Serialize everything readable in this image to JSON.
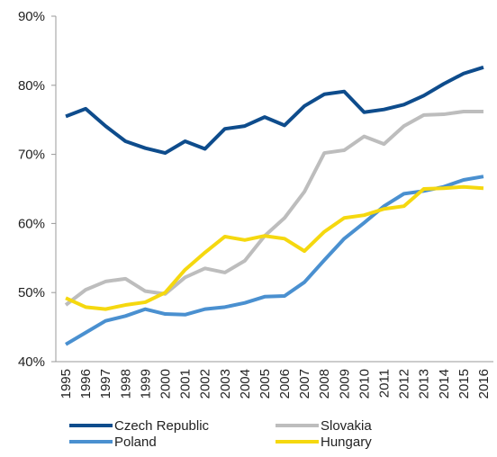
{
  "chart_data": {
    "type": "line",
    "categories": [
      "1995",
      "1996",
      "1997",
      "1998",
      "1999",
      "2000",
      "2001",
      "2002",
      "2003",
      "2004",
      "2005",
      "2006",
      "2007",
      "2008",
      "2009",
      "2010",
      "2011",
      "2012",
      "2013",
      "2014",
      "2015",
      "2016"
    ],
    "series": [
      {
        "name": "Czech Republic",
        "color": "#0e4c8c",
        "values": [
          75.5,
          76.6,
          74.1,
          71.9,
          70.9,
          70.2,
          71.9,
          70.8,
          73.7,
          74.1,
          75.4,
          74.2,
          77.0,
          78.7,
          79.1,
          76.1,
          76.5,
          77.2,
          78.5,
          80.2,
          81.7,
          82.6
        ]
      },
      {
        "name": "Slovakia",
        "color": "#bdbdbd",
        "values": [
          48.2,
          50.4,
          51.6,
          52.0,
          50.2,
          49.8,
          52.2,
          53.5,
          52.9,
          54.6,
          58.2,
          60.8,
          64.6,
          70.2,
          70.6,
          72.6,
          71.5,
          74.1,
          75.7,
          75.8,
          76.2,
          76.2
        ]
      },
      {
        "name": "Poland",
        "color": "#4a90d0",
        "values": [
          42.5,
          44.2,
          45.9,
          46.6,
          47.6,
          46.9,
          46.8,
          47.6,
          47.9,
          48.5,
          49.4,
          49.5,
          51.5,
          54.7,
          57.8,
          60.1,
          62.5,
          64.3,
          64.7,
          65.3,
          66.3,
          66.8
        ]
      },
      {
        "name": "Hungary",
        "color": "#f5d80f",
        "values": [
          49.2,
          47.9,
          47.6,
          48.2,
          48.6,
          50.0,
          53.3,
          55.8,
          58.1,
          57.6,
          58.2,
          57.8,
          56.0,
          58.8,
          60.8,
          61.2,
          62.1,
          62.5,
          65.0,
          65.1,
          65.3,
          65.1
        ]
      }
    ],
    "ylim": [
      40,
      90
    ],
    "yticks": [
      {
        "value": 40,
        "label": "40%"
      },
      {
        "value": 50,
        "label": "50%"
      },
      {
        "value": 60,
        "label": "60%"
      },
      {
        "value": 70,
        "label": "70%"
      },
      {
        "value": 80,
        "label": "80%"
      },
      {
        "value": 90,
        "label": "90%"
      }
    ],
    "legend": "bottom"
  }
}
